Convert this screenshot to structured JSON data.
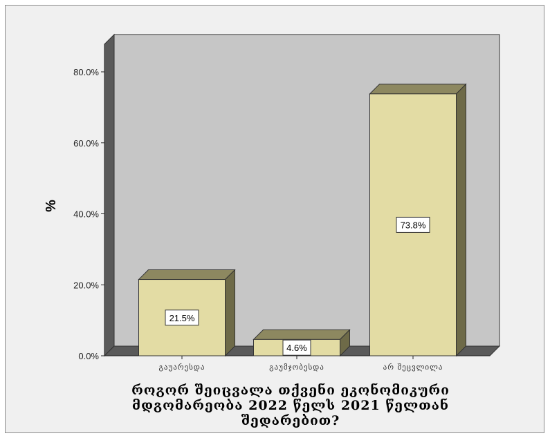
{
  "chart_data": {
    "type": "bar",
    "categories": [
      "გაუარესდა",
      "გაუმჯობესდა",
      "არ შეცვლილა"
    ],
    "values": [
      21.5,
      4.6,
      73.8
    ],
    "data_labels": [
      "21.5%",
      "4.6%",
      "73.8%"
    ],
    "ylabel": "%",
    "xlabel_lines": [
      "როგორ შეიცვალა თქვენი ეკონომიკური",
      "მდგომარეობა 2022 წელს 2021 წელთან",
      "შედარებით?"
    ],
    "yticks": [
      "0.0%",
      "20.0%",
      "40.0%",
      "60.0%",
      "80.0%"
    ],
    "ylim": [
      0,
      80
    ],
    "grid": false,
    "legend": "none",
    "style": "3d",
    "colors": {
      "bar_front": "#e3dca4",
      "bar_top": "#8d8860",
      "bar_side": "#6e6a48",
      "plot_back": "#c6c6c6",
      "plot_left_wall": "#5a5a5a",
      "plot_floor": "#5a5a5a",
      "frame_bg": "#f0f0f0"
    }
  }
}
